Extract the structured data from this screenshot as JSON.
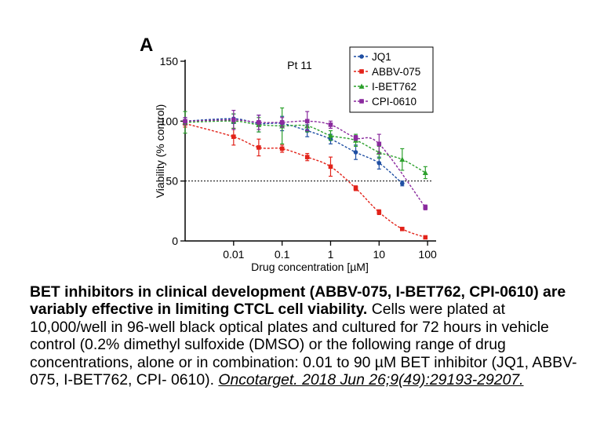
{
  "panel_label": "A",
  "caption": {
    "bold": "BET inhibitors in clinical development (ABBV-075, I-BET762, CPI-0610) are variably effective in limiting CTCL cell viability.",
    "body": "Cells were plated at 10,000/well in 96-well black optical plates and cultured for 72 hours in vehicle control (0.2% dimethyl sulfoxide (DMSO) or the following range of drug concentrations, alone or in combination: 0.01 to 90 µM BET inhibitor (JQ1, ABBV-075, I-BET762, CPI- 0610).",
    "citation": "Oncotarget. 2018 Jun 26;9(49):29193-29207."
  },
  "colors": {
    "JQ1": "#1f4fa3",
    "ABBV-075": "#e2231a",
    "I-BET762": "#2ca02c",
    "CPI-0610": "#8a2a9e"
  },
  "chart_data": {
    "type": "scatter",
    "title": "Pt 11",
    "xlabel": "Drug concentration [µM]",
    "ylabel": "Viability (% control)",
    "x_scale": "log",
    "xlim": [
      0.001,
      150
    ],
    "ylim": [
      0,
      150
    ],
    "xticks": [
      0.01,
      0.1,
      1,
      10,
      100
    ],
    "xtick_labels": [
      "0.01",
      "0.1",
      "1",
      "10",
      "100"
    ],
    "yticks": [
      0,
      50,
      100,
      150
    ],
    "ytick_labels": [
      "0",
      "50",
      "100",
      "150"
    ],
    "reference_line_y": 50,
    "legend_position": "top-right",
    "x": [
      0.001,
      0.01,
      0.033,
      0.1,
      0.33,
      1,
      3.3,
      10,
      30,
      90
    ],
    "series": [
      {
        "name": "JQ1",
        "marker": "circle",
        "values": [
          100,
          102,
          98,
          98,
          92,
          85,
          74,
          65,
          48,
          null
        ],
        "errors": [
          3,
          4,
          7,
          6,
          5,
          4,
          6,
          5,
          2,
          null
        ]
      },
      {
        "name": "ABBV-075",
        "marker": "square",
        "values": [
          98,
          87,
          78,
          77,
          70,
          62,
          44,
          24,
          10,
          3
        ],
        "errors": [
          3,
          7,
          7,
          3,
          3,
          8,
          2,
          2,
          1,
          1
        ]
      },
      {
        "name": "I-BET762",
        "marker": "triangle",
        "values": [
          99,
          100,
          97,
          96,
          96,
          88,
          84,
          74,
          68,
          57
        ],
        "errors": [
          9,
          6,
          6,
          15,
          5,
          4,
          5,
          5,
          9,
          5
        ]
      },
      {
        "name": "CPI-0610",
        "marker": "square",
        "values": [
          100,
          101,
          99,
          99,
          100,
          97,
          86,
          81,
          null,
          28
        ],
        "errors": [
          3,
          8,
          6,
          4,
          8,
          3,
          2,
          8,
          null,
          2
        ]
      }
    ]
  }
}
